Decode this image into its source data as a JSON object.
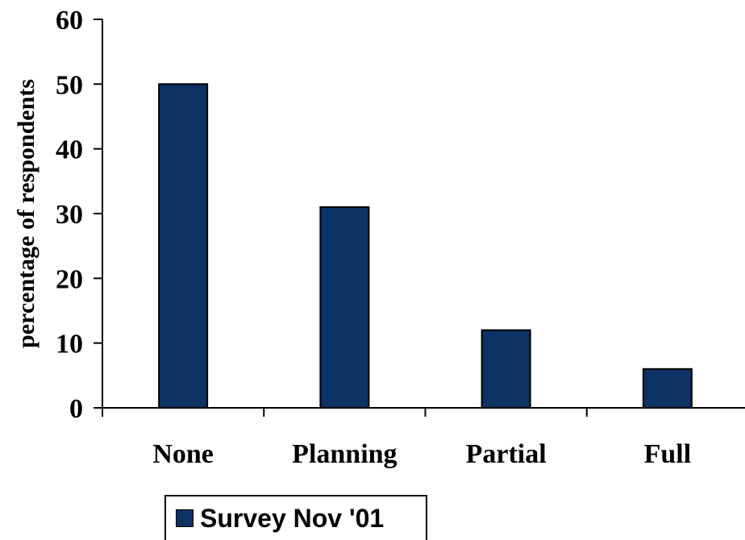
{
  "chart_data": {
    "type": "bar",
    "categories": [
      "None",
      "Planning",
      "Partial",
      "Full"
    ],
    "series": [
      {
        "name": "Survey Nov '01",
        "values": [
          50,
          31,
          12,
          6
        ],
        "color": "#0d3264"
      }
    ],
    "title": "",
    "xlabel": "",
    "ylabel": "percentage of respondents",
    "ylim": [
      0,
      60
    ],
    "yticks": [
      0,
      10,
      20,
      30,
      40,
      50,
      60
    ],
    "grid": false,
    "legend_position": "bottom-left"
  }
}
